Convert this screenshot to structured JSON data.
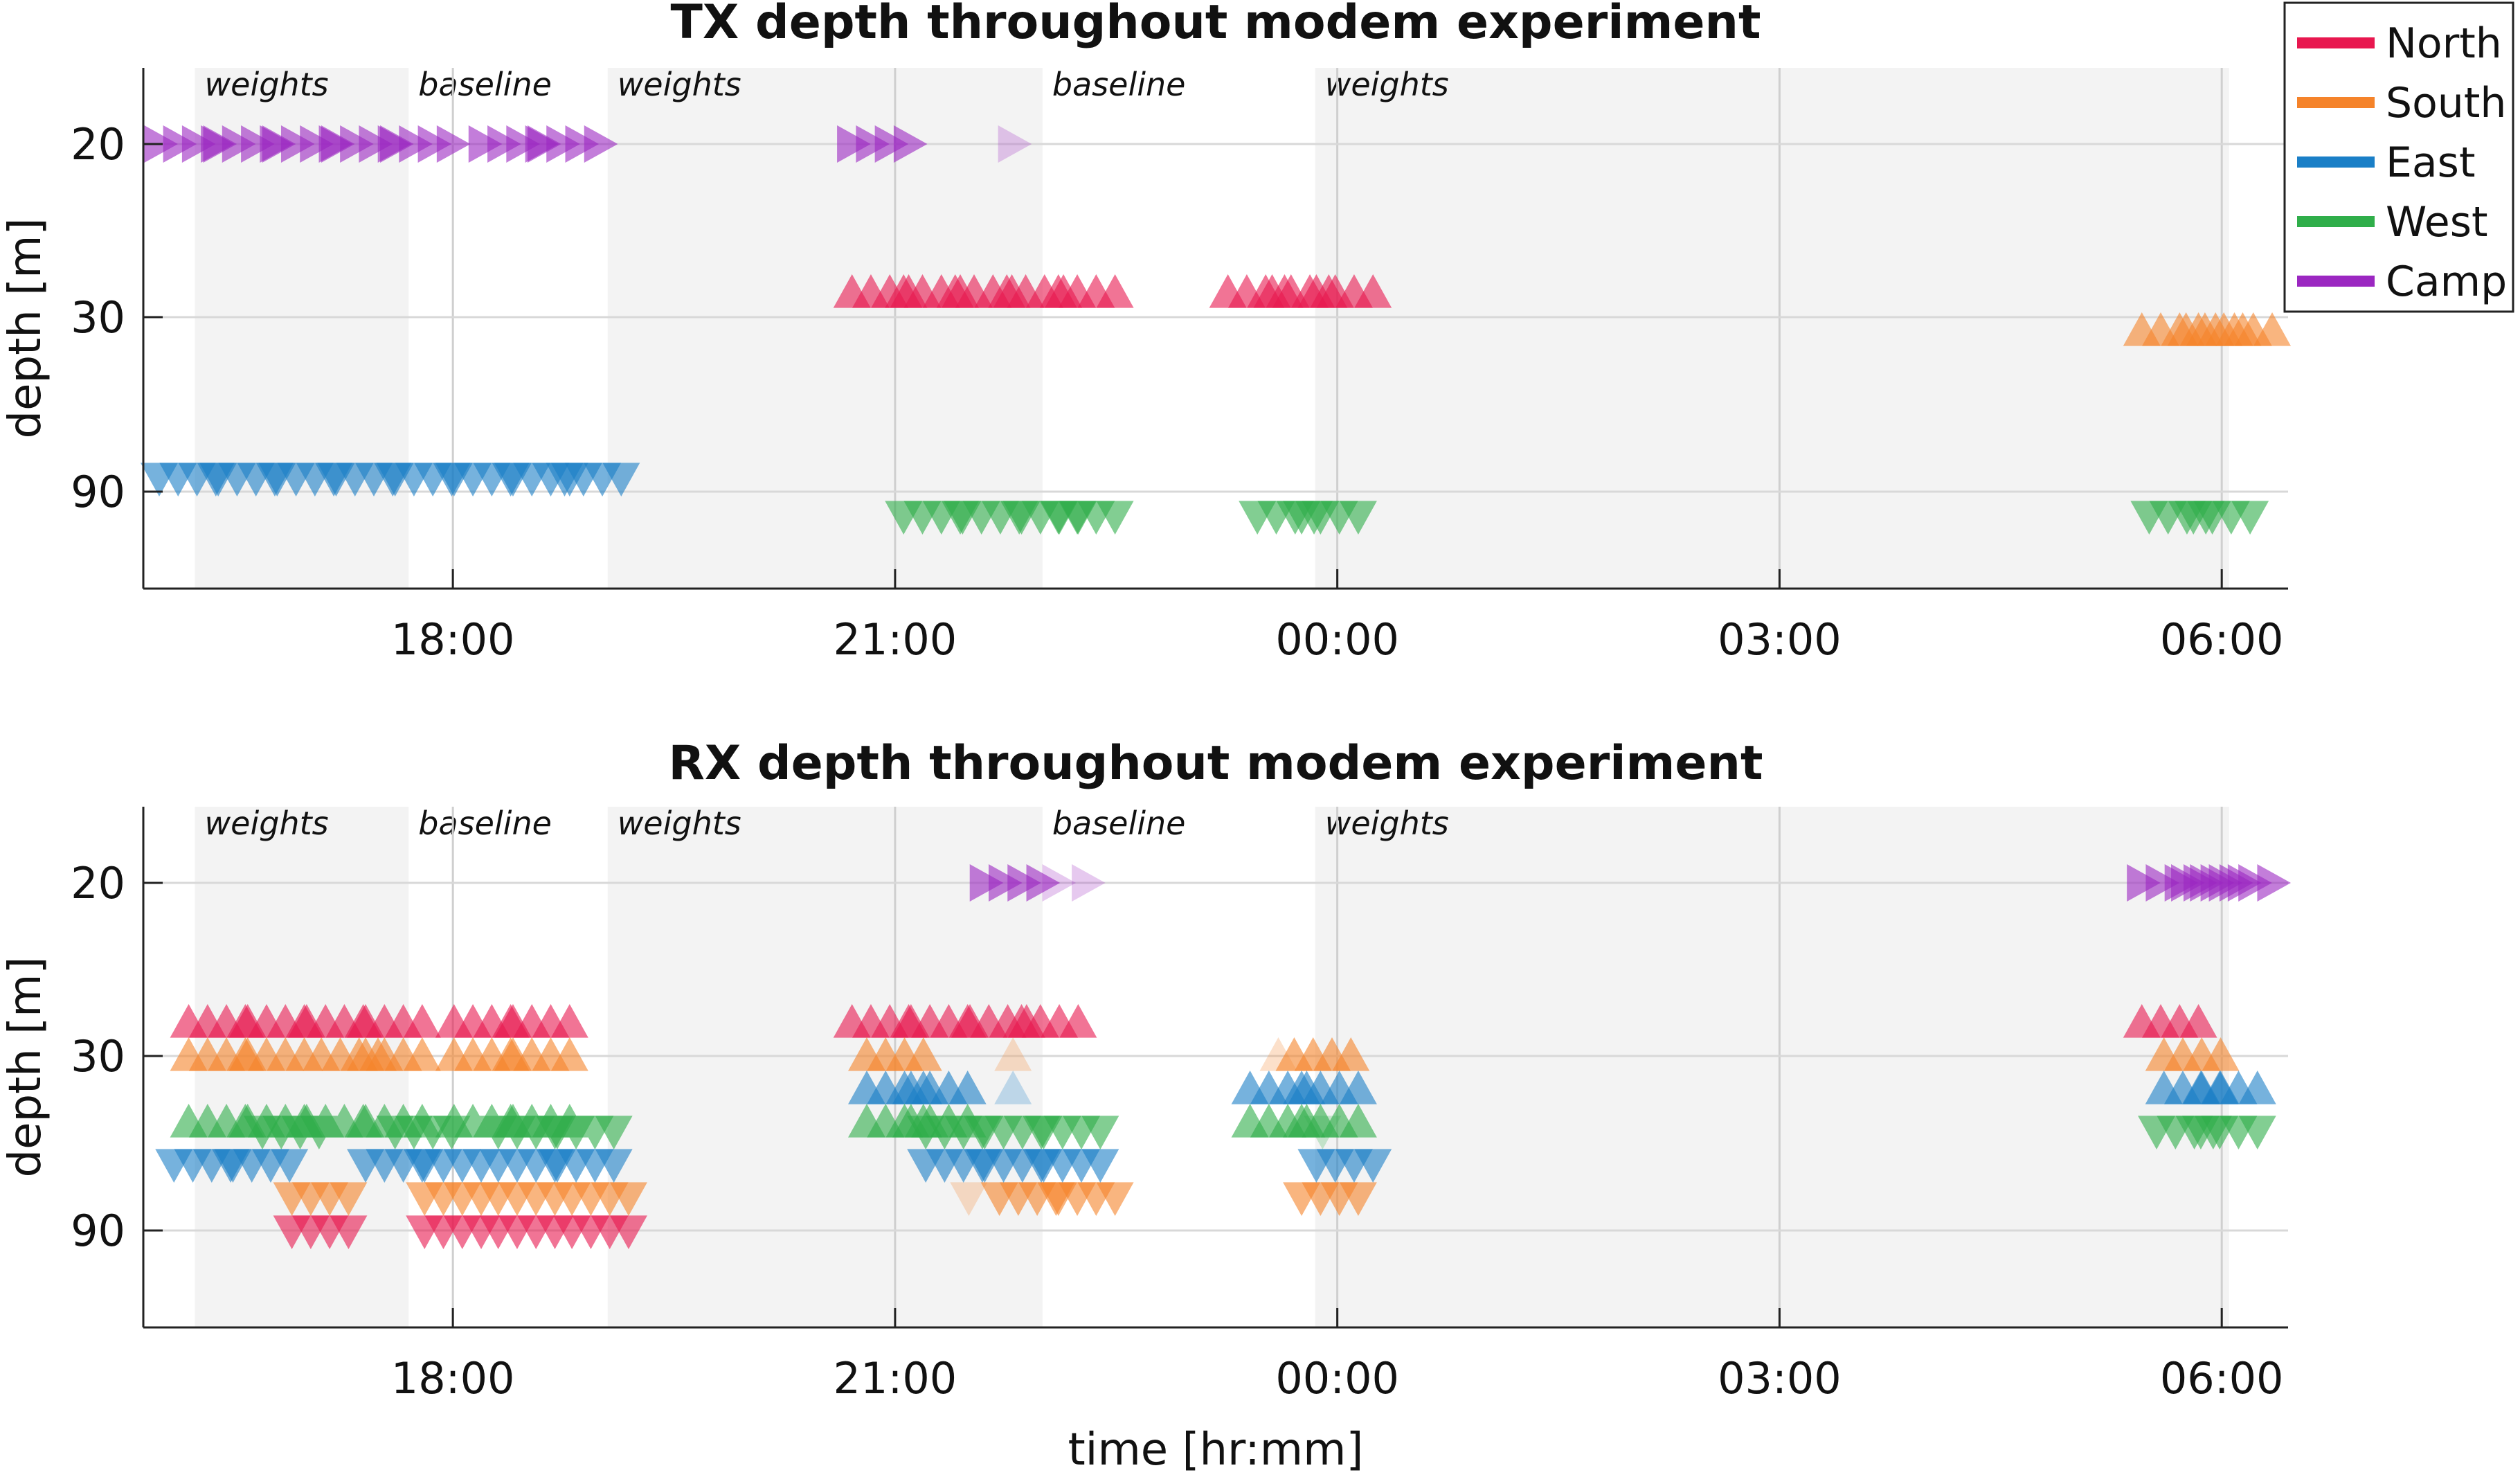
{
  "chart_data": [
    {
      "type": "scatter",
      "title": "TX depth throughout modem experiment",
      "xlabel": "",
      "ylabel": "depth [m]",
      "x_unit": "hours since 00:00 (negative = previous day)",
      "xlim": [
        -8.1,
        6.45
      ],
      "x_ticks": [
        -6,
        -3,
        0,
        3,
        6
      ],
      "x_tick_labels": [
        "18:00",
        "21:00",
        "00:00",
        "03:00",
        "06:00"
      ],
      "y_categories": [
        "20",
        "30",
        "90"
      ],
      "grid": true,
      "phases": [
        {
          "label": "weights",
          "start": -7.75,
          "end": -6.3,
          "shaded": true
        },
        {
          "label": "baseline",
          "start": -6.3,
          "end": -4.95,
          "shaded": false
        },
        {
          "label": "weights",
          "start": -4.95,
          "end": -2.0,
          "shaded": true
        },
        {
          "label": "baseline",
          "start": -2.0,
          "end": -0.15,
          "shaded": false
        },
        {
          "label": "weights",
          "start": -0.15,
          "end": 6.05,
          "shaded": true
        }
      ],
      "series": [
        {
          "name": "North",
          "color": "#e8174f",
          "points": [
            {
              "x": -3.1,
              "depth": "30",
              "marker": "up"
            },
            {
              "x": -2.75,
              "depth": "30",
              "marker": "up"
            },
            {
              "x": -2.4,
              "depth": "30",
              "marker": "up"
            },
            {
              "x": -2.05,
              "depth": "30",
              "marker": "up"
            },
            {
              "x": -1.7,
              "depth": "30",
              "marker": "up"
            },
            {
              "x": -0.55,
              "depth": "30",
              "marker": "up"
            },
            {
              "x": -0.25,
              "depth": "30",
              "marker": "up"
            },
            {
              "x": 0.05,
              "depth": "30",
              "marker": "up"
            }
          ]
        },
        {
          "name": "South",
          "color": "#f5832a",
          "points": [
            {
              "x": 5.65,
              "depth": "30",
              "marker": "up"
            },
            {
              "x": 5.95,
              "depth": "30",
              "marker": "up"
            },
            {
              "x": 6.15,
              "depth": "30",
              "marker": "up"
            }
          ]
        },
        {
          "name": "East",
          "color": "#1a7fc7",
          "points": [
            {
              "x": -7.8,
              "depth": "90",
              "marker": "down"
            },
            {
              "x": -7.4,
              "depth": "90",
              "marker": "down"
            },
            {
              "x": -7.0,
              "depth": "90",
              "marker": "down"
            },
            {
              "x": -6.6,
              "depth": "90",
              "marker": "down"
            },
            {
              "x": -6.2,
              "depth": "90",
              "marker": "down"
            },
            {
              "x": -5.8,
              "depth": "90",
              "marker": "down"
            },
            {
              "x": -5.4,
              "depth": "90",
              "marker": "down"
            },
            {
              "x": -5.05,
              "depth": "90",
              "marker": "down"
            }
          ]
        },
        {
          "name": "West",
          "color": "#2fae4a",
          "points": [
            {
              "x": -2.75,
              "depth": "90",
              "marker": "down"
            },
            {
              "x": -2.35,
              "depth": "90",
              "marker": "down"
            },
            {
              "x": -1.95,
              "depth": "90",
              "marker": "down"
            },
            {
              "x": -1.7,
              "depth": "90",
              "marker": "down"
            },
            {
              "x": -0.35,
              "depth": "90",
              "marker": "down"
            },
            {
              "x": -0.05,
              "depth": "90",
              "marker": "down"
            },
            {
              "x": 5.7,
              "depth": "90",
              "marker": "down"
            },
            {
              "x": 6.0,
              "depth": "90",
              "marker": "down"
            }
          ]
        },
        {
          "name": "Camp",
          "color": "#9b27c1",
          "points": [
            {
              "x": -7.8,
              "depth": "20",
              "marker": "right"
            },
            {
              "x": -7.4,
              "depth": "20",
              "marker": "right"
            },
            {
              "x": -7.0,
              "depth": "20",
              "marker": "right"
            },
            {
              "x": -6.6,
              "depth": "20",
              "marker": "right"
            },
            {
              "x": -6.2,
              "depth": "20",
              "marker": "right"
            },
            {
              "x": -5.6,
              "depth": "20",
              "marker": "right"
            },
            {
              "x": -5.2,
              "depth": "20",
              "marker": "right"
            },
            {
              "x": -3.1,
              "depth": "20",
              "marker": "right"
            },
            {
              "x": -2.2,
              "depth": "20",
              "marker": "right",
              "faint": true
            }
          ]
        }
      ]
    },
    {
      "type": "scatter",
      "title": "RX depth throughout modem experiment",
      "xlabel": "time [hr:mm]",
      "ylabel": "depth [m]",
      "x_unit": "hours since 00:00 (negative = previous day)",
      "xlim": [
        -8.1,
        6.45
      ],
      "x_ticks": [
        -6,
        -3,
        0,
        3,
        6
      ],
      "x_tick_labels": [
        "18:00",
        "21:00",
        "00:00",
        "03:00",
        "06:00"
      ],
      "y_categories": [
        "20",
        "30",
        "90"
      ],
      "grid": true,
      "phases": [
        {
          "label": "weights",
          "start": -7.75,
          "end": -6.3,
          "shaded": true
        },
        {
          "label": "baseline",
          "start": -6.3,
          "end": -4.95,
          "shaded": false
        },
        {
          "label": "weights",
          "start": -4.95,
          "end": -2.0,
          "shaded": true
        },
        {
          "label": "baseline",
          "start": -2.0,
          "end": -0.15,
          "shaded": false
        },
        {
          "label": "weights",
          "start": -0.15,
          "end": 6.05,
          "shaded": true
        }
      ],
      "series": [
        {
          "name": "North",
          "color": "#e8174f",
          "points": [
            {
              "x": -7.6,
              "depth": "30",
              "marker": "up",
              "level": 1
            },
            {
              "x": -7.2,
              "depth": "30",
              "marker": "up",
              "level": 1
            },
            {
              "x": -6.8,
              "depth": "30",
              "marker": "up",
              "level": 1
            },
            {
              "x": -6.4,
              "depth": "30",
              "marker": "up",
              "level": 1
            },
            {
              "x": -5.8,
              "depth": "30",
              "marker": "up",
              "level": 1
            },
            {
              "x": -5.4,
              "depth": "30",
              "marker": "up",
              "level": 1
            },
            {
              "x": -3.1,
              "depth": "30",
              "marker": "up",
              "level": 1
            },
            {
              "x": -2.7,
              "depth": "30",
              "marker": "up",
              "level": 1
            },
            {
              "x": -2.3,
              "depth": "30",
              "marker": "up",
              "level": 1
            },
            {
              "x": -1.95,
              "depth": "30",
              "marker": "up",
              "level": 1
            },
            {
              "x": 5.65,
              "depth": "30",
              "marker": "up",
              "level": 1
            },
            {
              "x": -6.9,
              "depth": "90",
              "marker": "down",
              "level": 0
            },
            {
              "x": -6.0,
              "depth": "90",
              "marker": "down",
              "level": 0
            },
            {
              "x": -5.5,
              "depth": "90",
              "marker": "down",
              "level": 0
            },
            {
              "x": -5.0,
              "depth": "90",
              "marker": "down",
              "level": 0
            }
          ]
        },
        {
          "name": "South",
          "color": "#f5832a",
          "points": [
            {
              "x": -7.6,
              "depth": "30",
              "marker": "up",
              "level": 0
            },
            {
              "x": -7.2,
              "depth": "30",
              "marker": "up",
              "level": 0
            },
            {
              "x": -6.7,
              "depth": "30",
              "marker": "up",
              "level": 0
            },
            {
              "x": -6.4,
              "depth": "30",
              "marker": "up",
              "level": 0
            },
            {
              "x": -5.8,
              "depth": "30",
              "marker": "up",
              "level": 0
            },
            {
              "x": -5.4,
              "depth": "30",
              "marker": "up",
              "level": 0
            },
            {
              "x": -3.0,
              "depth": "30",
              "marker": "up",
              "level": 0
            },
            {
              "x": -2.2,
              "depth": "30",
              "marker": "up",
              "level": 0,
              "faint": true
            },
            {
              "x": -0.4,
              "depth": "30",
              "marker": "up",
              "level": 0,
              "faint": true
            },
            {
              "x": -0.1,
              "depth": "30",
              "marker": "up",
              "level": 0
            },
            {
              "x": 5.8,
              "depth": "30",
              "marker": "up",
              "level": 0
            },
            {
              "x": -6.9,
              "depth": "90",
              "marker": "down",
              "level": 1
            },
            {
              "x": -6.0,
              "depth": "90",
              "marker": "down",
              "level": 1
            },
            {
              "x": -5.5,
              "depth": "90",
              "marker": "down",
              "level": 1
            },
            {
              "x": -5.0,
              "depth": "90",
              "marker": "down",
              "level": 1
            },
            {
              "x": -2.5,
              "depth": "90",
              "marker": "down",
              "level": 1,
              "faint": true
            },
            {
              "x": -2.1,
              "depth": "90",
              "marker": "down",
              "level": 1
            },
            {
              "x": -1.7,
              "depth": "90",
              "marker": "down",
              "level": 1
            },
            {
              "x": -0.05,
              "depth": "90",
              "marker": "down",
              "level": 1
            }
          ]
        },
        {
          "name": "East",
          "color": "#1a7fc7",
          "points": [
            {
              "x": -3.0,
              "depth": "30",
              "marker": "up",
              "level": -1
            },
            {
              "x": -2.7,
              "depth": "30",
              "marker": "up",
              "level": -1
            },
            {
              "x": -2.2,
              "depth": "30",
              "marker": "up",
              "level": -1,
              "faint": true
            },
            {
              "x": -0.4,
              "depth": "30",
              "marker": "up",
              "level": -1
            },
            {
              "x": -0.05,
              "depth": "30",
              "marker": "up",
              "level": -1
            },
            {
              "x": 5.8,
              "depth": "30",
              "marker": "up",
              "level": -1
            },
            {
              "x": 6.05,
              "depth": "30",
              "marker": "up",
              "level": -1
            },
            {
              "x": -7.7,
              "depth": "90",
              "marker": "down",
              "level": 2
            },
            {
              "x": -7.3,
              "depth": "90",
              "marker": "down",
              "level": 2
            },
            {
              "x": -6.4,
              "depth": "90",
              "marker": "down",
              "level": 2
            },
            {
              "x": -6.0,
              "depth": "90",
              "marker": "down",
              "level": 2
            },
            {
              "x": -5.5,
              "depth": "90",
              "marker": "down",
              "level": 2
            },
            {
              "x": -5.1,
              "depth": "90",
              "marker": "down",
              "level": 2
            },
            {
              "x": -2.6,
              "depth": "90",
              "marker": "down",
              "level": 2
            },
            {
              "x": -2.2,
              "depth": "90",
              "marker": "down",
              "level": 2
            },
            {
              "x": -1.8,
              "depth": "90",
              "marker": "down",
              "level": 2
            },
            {
              "x": 0.05,
              "depth": "90",
              "marker": "down",
              "level": 2
            }
          ]
        },
        {
          "name": "West",
          "color": "#2fae4a",
          "points": [
            {
              "x": -7.6,
              "depth": "30",
              "marker": "up",
              "level": -2
            },
            {
              "x": -7.2,
              "depth": "30",
              "marker": "up",
              "level": -2
            },
            {
              "x": -6.8,
              "depth": "30",
              "marker": "up",
              "level": -2
            },
            {
              "x": -6.4,
              "depth": "30",
              "marker": "up",
              "level": -2
            },
            {
              "x": -5.8,
              "depth": "30",
              "marker": "up",
              "level": -2
            },
            {
              "x": -5.4,
              "depth": "30",
              "marker": "up",
              "level": -2
            },
            {
              "x": -3.0,
              "depth": "30",
              "marker": "up",
              "level": -2
            },
            {
              "x": -2.7,
              "depth": "30",
              "marker": "up",
              "level": -2
            },
            {
              "x": -0.4,
              "depth": "30",
              "marker": "up",
              "level": -2
            },
            {
              "x": -0.05,
              "depth": "30",
              "marker": "up",
              "level": -2
            },
            {
              "x": -7.1,
              "depth": "90",
              "marker": "down",
              "level": 3
            },
            {
              "x": -6.2,
              "depth": "90",
              "marker": "down",
              "level": 3
            },
            {
              "x": -5.5,
              "depth": "90",
              "marker": "down",
              "level": 3
            },
            {
              "x": -5.1,
              "depth": "90",
              "marker": "down",
              "level": 3
            },
            {
              "x": -2.6,
              "depth": "90",
              "marker": "down",
              "level": 3
            },
            {
              "x": -2.2,
              "depth": "90",
              "marker": "down",
              "level": 3
            },
            {
              "x": -1.8,
              "depth": "90",
              "marker": "down",
              "level": 3
            },
            {
              "x": -0.1,
              "depth": "90",
              "marker": "down",
              "level": 3,
              "faint": true
            },
            {
              "x": 5.75,
              "depth": "90",
              "marker": "down",
              "level": 3
            },
            {
              "x": 6.05,
              "depth": "90",
              "marker": "down",
              "level": 3
            }
          ]
        },
        {
          "name": "Camp",
          "color": "#9b27c1",
          "points": [
            {
              "x": -2.2,
              "depth": "20",
              "marker": "right"
            },
            {
              "x": -1.9,
              "depth": "20",
              "marker": "right",
              "faint": true
            },
            {
              "x": -1.7,
              "depth": "20",
              "marker": "right",
              "faint": true
            },
            {
              "x": 5.65,
              "depth": "20",
              "marker": "right"
            },
            {
              "x": 5.95,
              "depth": "20",
              "marker": "right"
            },
            {
              "x": 6.15,
              "depth": "20",
              "marker": "right"
            }
          ]
        }
      ]
    }
  ],
  "legend": {
    "placement": "top-right",
    "entries": [
      {
        "name": "North",
        "color": "#e8174f"
      },
      {
        "name": "South",
        "color": "#f5832a"
      },
      {
        "name": "East",
        "color": "#1a7fc7"
      },
      {
        "name": "West",
        "color": "#2fae4a"
      },
      {
        "name": "Camp",
        "color": "#9b27c1"
      }
    ]
  }
}
